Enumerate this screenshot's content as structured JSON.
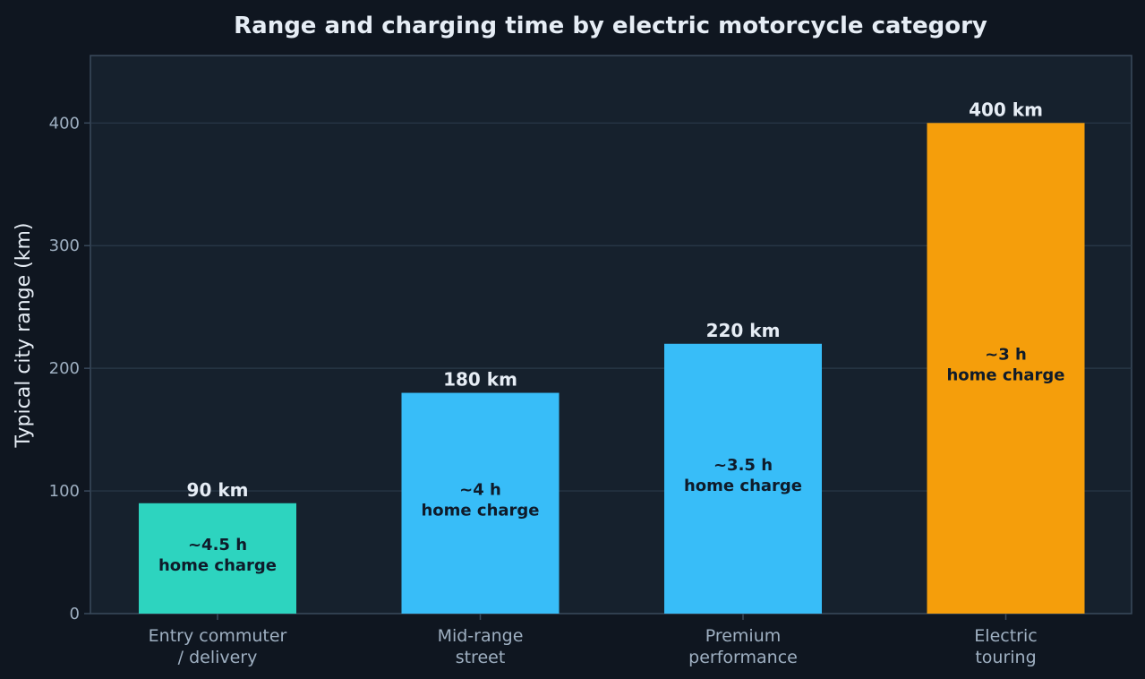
{
  "chart_data": {
    "type": "bar",
    "title": "Range and charging time by electric motorcycle category",
    "xlabel": "",
    "ylabel": "Typical city range (km)",
    "ylim": [
      0,
      455
    ],
    "yticks": [
      0,
      100,
      200,
      300,
      400
    ],
    "grid": true,
    "categories": [
      [
        "Entry commuter",
        "/ delivery"
      ],
      [
        "Mid-range",
        "street"
      ],
      [
        "Premium",
        "performance"
      ],
      [
        "Electric",
        "touring"
      ]
    ],
    "values": [
      90,
      180,
      220,
      400
    ],
    "value_labels": [
      "90 km",
      "180 km",
      "220 km",
      "400 km"
    ],
    "inner_labels": [
      [
        "~4.5 h",
        "home charge"
      ],
      [
        "~4 h",
        "home charge"
      ],
      [
        "~3.5 h",
        "home charge"
      ],
      [
        "~3 h",
        "home charge"
      ]
    ],
    "bar_colors": [
      "#2dd4bf",
      "#38bdf8",
      "#38bdf8",
      "#f59e0b"
    ]
  },
  "colors": {
    "page_background": "#0f1620",
    "plot_background": "#16212d",
    "grid": "#2a3a4a",
    "axis": "#3a4a5c"
  }
}
